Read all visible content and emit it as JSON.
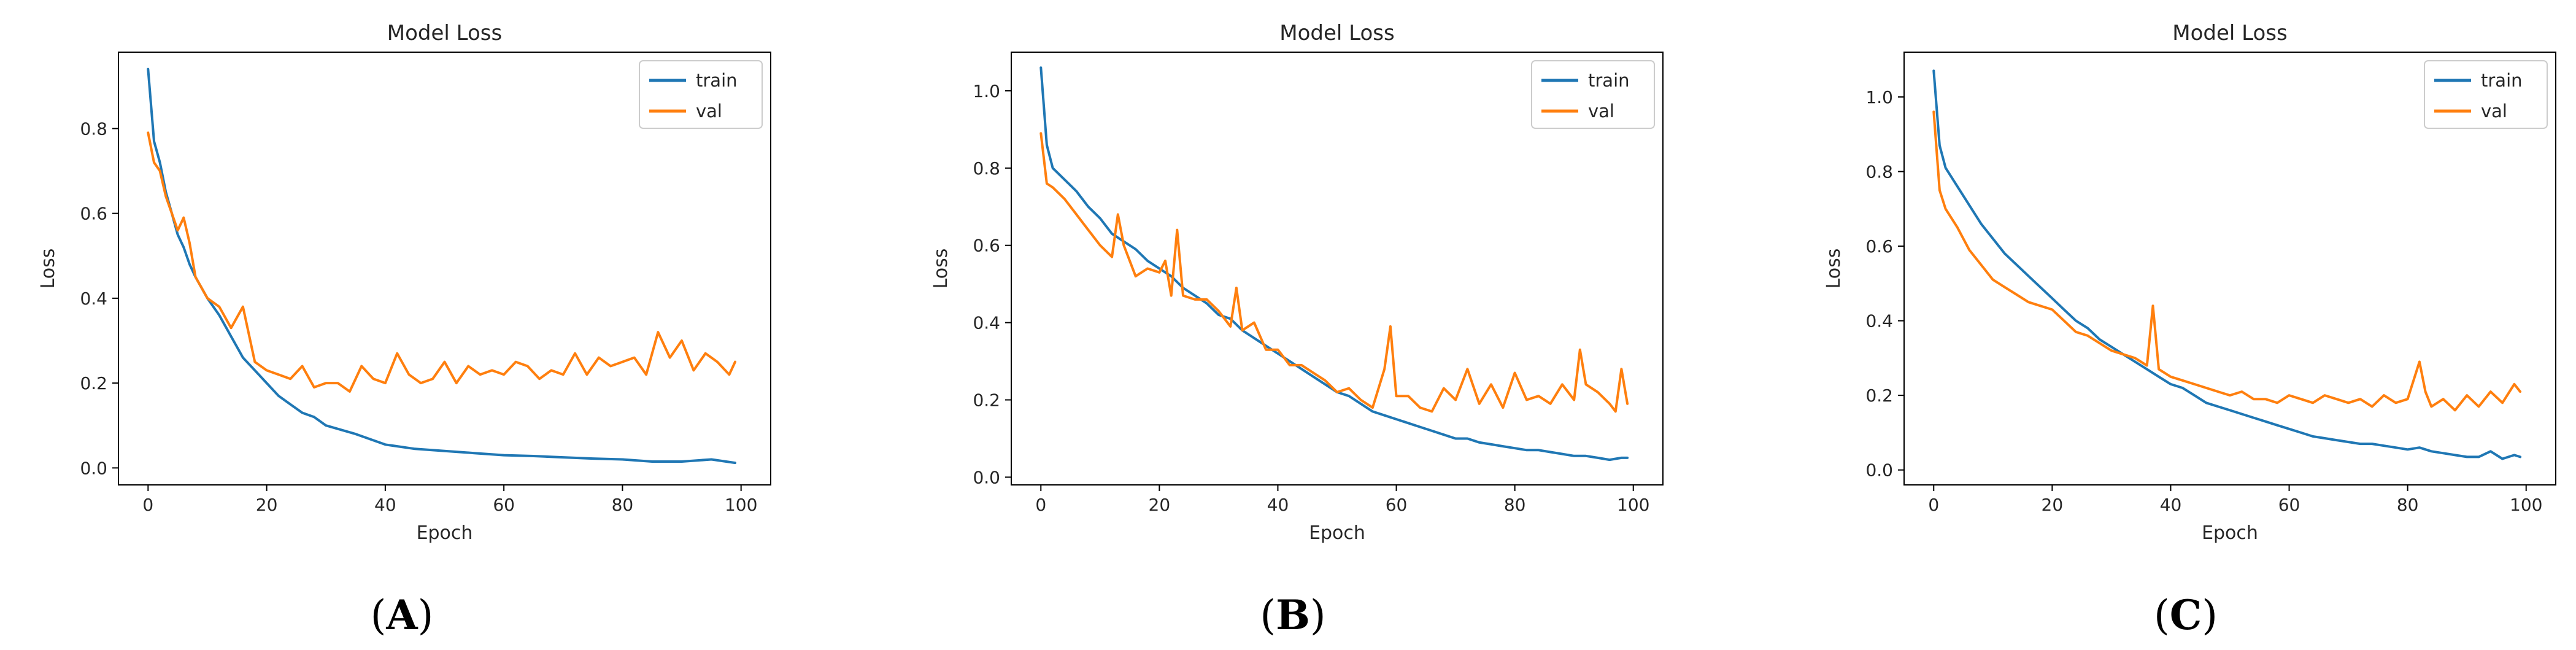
{
  "colors": {
    "train": "#1f77b4",
    "val": "#ff7f0e"
  },
  "chart_data": [
    {
      "type": "line",
      "panel_label": "A",
      "title": "Model Loss",
      "xlabel": "Epoch",
      "ylabel": "Loss",
      "xlim": [
        -5,
        105
      ],
      "ylim": [
        -0.04,
        0.98
      ],
      "xticks": [
        0,
        20,
        40,
        60,
        80,
        100
      ],
      "yticks": [
        0.0,
        0.2,
        0.4,
        0.6,
        0.8
      ],
      "ytick_labels": [
        "0.0",
        "0.2",
        "0.4",
        "0.6",
        "0.8"
      ],
      "legend": {
        "position": "upper right",
        "entries": [
          "train",
          "val"
        ]
      },
      "series": [
        {
          "name": "train",
          "x": [
            0,
            1,
            2,
            3,
            4,
            5,
            6,
            7,
            8,
            10,
            12,
            14,
            16,
            18,
            20,
            22,
            24,
            26,
            28,
            30,
            35,
            40,
            45,
            50,
            55,
            60,
            65,
            70,
            75,
            80,
            85,
            90,
            95,
            99
          ],
          "values": [
            0.94,
            0.77,
            0.72,
            0.65,
            0.6,
            0.55,
            0.52,
            0.48,
            0.45,
            0.4,
            0.36,
            0.31,
            0.26,
            0.23,
            0.2,
            0.17,
            0.15,
            0.13,
            0.12,
            0.1,
            0.08,
            0.055,
            0.045,
            0.04,
            0.035,
            0.03,
            0.028,
            0.025,
            0.022,
            0.02,
            0.015,
            0.015,
            0.02,
            0.012
          ]
        },
        {
          "name": "val",
          "x": [
            0,
            1,
            2,
            3,
            4,
            5,
            6,
            7,
            8,
            10,
            12,
            14,
            16,
            18,
            20,
            22,
            24,
            26,
            28,
            30,
            32,
            34,
            36,
            38,
            40,
            42,
            44,
            46,
            48,
            50,
            52,
            54,
            56,
            58,
            60,
            62,
            64,
            66,
            68,
            70,
            72,
            74,
            76,
            78,
            80,
            82,
            84,
            86,
            88,
            90,
            92,
            94,
            96,
            98,
            99
          ],
          "values": [
            0.79,
            0.72,
            0.7,
            0.64,
            0.6,
            0.56,
            0.59,
            0.53,
            0.45,
            0.4,
            0.38,
            0.33,
            0.38,
            0.25,
            0.23,
            0.22,
            0.21,
            0.24,
            0.19,
            0.2,
            0.2,
            0.18,
            0.24,
            0.21,
            0.2,
            0.27,
            0.22,
            0.2,
            0.21,
            0.25,
            0.2,
            0.24,
            0.22,
            0.23,
            0.22,
            0.25,
            0.24,
            0.21,
            0.23,
            0.22,
            0.27,
            0.22,
            0.26,
            0.24,
            0.25,
            0.26,
            0.22,
            0.32,
            0.26,
            0.3,
            0.23,
            0.27,
            0.25,
            0.22,
            0.25
          ]
        }
      ]
    },
    {
      "type": "line",
      "panel_label": "B",
      "title": "Model Loss",
      "xlabel": "Epoch",
      "ylabel": "Loss",
      "xlim": [
        -5,
        105
      ],
      "ylim": [
        -0.02,
        1.1
      ],
      "xticks": [
        0,
        20,
        40,
        60,
        80,
        100
      ],
      "yticks": [
        0.0,
        0.2,
        0.4,
        0.6,
        0.8,
        1.0
      ],
      "ytick_labels": [
        "0.0",
        "0.2",
        "0.4",
        "0.6",
        "0.8",
        "1.0"
      ],
      "legend": {
        "position": "upper right",
        "entries": [
          "train",
          "val"
        ]
      },
      "series": [
        {
          "name": "train",
          "x": [
            0,
            1,
            2,
            4,
            6,
            8,
            10,
            12,
            14,
            16,
            18,
            20,
            22,
            24,
            26,
            28,
            30,
            32,
            34,
            36,
            38,
            40,
            42,
            44,
            46,
            48,
            50,
            52,
            54,
            56,
            58,
            60,
            62,
            64,
            66,
            68,
            70,
            72,
            74,
            76,
            78,
            80,
            82,
            84,
            86,
            88,
            90,
            92,
            94,
            96,
            98,
            99
          ],
          "values": [
            1.06,
            0.86,
            0.8,
            0.77,
            0.74,
            0.7,
            0.67,
            0.63,
            0.61,
            0.59,
            0.56,
            0.54,
            0.52,
            0.49,
            0.47,
            0.45,
            0.42,
            0.41,
            0.38,
            0.36,
            0.34,
            0.32,
            0.3,
            0.28,
            0.26,
            0.24,
            0.22,
            0.21,
            0.19,
            0.17,
            0.16,
            0.15,
            0.14,
            0.13,
            0.12,
            0.11,
            0.1,
            0.1,
            0.09,
            0.085,
            0.08,
            0.075,
            0.07,
            0.07,
            0.065,
            0.06,
            0.055,
            0.055,
            0.05,
            0.045,
            0.05,
            0.05
          ]
        },
        {
          "name": "val",
          "x": [
            0,
            1,
            2,
            4,
            6,
            8,
            10,
            12,
            13,
            14,
            16,
            18,
            20,
            21,
            22,
            23,
            24,
            26,
            28,
            30,
            32,
            33,
            34,
            36,
            38,
            40,
            42,
            44,
            46,
            48,
            50,
            52,
            54,
            56,
            58,
            59,
            60,
            62,
            64,
            66,
            68,
            70,
            72,
            74,
            76,
            78,
            80,
            82,
            84,
            86,
            88,
            90,
            91,
            92,
            94,
            96,
            97,
            98,
            99
          ],
          "values": [
            0.89,
            0.76,
            0.75,
            0.72,
            0.68,
            0.64,
            0.6,
            0.57,
            0.68,
            0.6,
            0.52,
            0.54,
            0.53,
            0.56,
            0.47,
            0.64,
            0.47,
            0.46,
            0.46,
            0.43,
            0.39,
            0.49,
            0.38,
            0.4,
            0.33,
            0.33,
            0.29,
            0.29,
            0.27,
            0.25,
            0.22,
            0.23,
            0.2,
            0.18,
            0.28,
            0.39,
            0.21,
            0.21,
            0.18,
            0.17,
            0.23,
            0.2,
            0.28,
            0.19,
            0.24,
            0.18,
            0.27,
            0.2,
            0.21,
            0.19,
            0.24,
            0.2,
            0.33,
            0.24,
            0.22,
            0.19,
            0.17,
            0.28,
            0.19
          ]
        }
      ]
    },
    {
      "type": "line",
      "panel_label": "C",
      "title": "Model Loss",
      "xlabel": "Epoch",
      "ylabel": "Loss",
      "xlim": [
        -5,
        105
      ],
      "ylim": [
        -0.04,
        1.12
      ],
      "xticks": [
        0,
        20,
        40,
        60,
        80,
        100
      ],
      "yticks": [
        0.0,
        0.2,
        0.4,
        0.6,
        0.8,
        1.0
      ],
      "ytick_labels": [
        "0.0",
        "0.2",
        "0.4",
        "0.6",
        "0.8",
        "1.0"
      ],
      "legend": {
        "position": "upper right",
        "entries": [
          "train",
          "val"
        ]
      },
      "series": [
        {
          "name": "train",
          "x": [
            0,
            1,
            2,
            4,
            6,
            8,
            10,
            12,
            14,
            16,
            18,
            20,
            22,
            24,
            26,
            28,
            30,
            32,
            34,
            36,
            38,
            40,
            42,
            44,
            46,
            48,
            50,
            52,
            54,
            56,
            58,
            60,
            62,
            64,
            66,
            68,
            70,
            72,
            74,
            76,
            78,
            80,
            82,
            84,
            86,
            88,
            90,
            92,
            94,
            96,
            98,
            99
          ],
          "values": [
            1.07,
            0.87,
            0.81,
            0.76,
            0.71,
            0.66,
            0.62,
            0.58,
            0.55,
            0.52,
            0.49,
            0.46,
            0.43,
            0.4,
            0.38,
            0.35,
            0.33,
            0.31,
            0.29,
            0.27,
            0.25,
            0.23,
            0.22,
            0.2,
            0.18,
            0.17,
            0.16,
            0.15,
            0.14,
            0.13,
            0.12,
            0.11,
            0.1,
            0.09,
            0.085,
            0.08,
            0.075,
            0.07,
            0.07,
            0.065,
            0.06,
            0.055,
            0.06,
            0.05,
            0.045,
            0.04,
            0.035,
            0.035,
            0.05,
            0.03,
            0.04,
            0.035
          ]
        },
        {
          "name": "val",
          "x": [
            0,
            1,
            2,
            4,
            6,
            8,
            10,
            12,
            14,
            16,
            18,
            20,
            22,
            24,
            26,
            28,
            30,
            32,
            34,
            36,
            37,
            38,
            40,
            42,
            44,
            46,
            48,
            50,
            52,
            54,
            56,
            58,
            60,
            62,
            64,
            66,
            68,
            70,
            72,
            74,
            76,
            78,
            80,
            82,
            83,
            84,
            86,
            88,
            90,
            92,
            94,
            96,
            98,
            99
          ],
          "values": [
            0.96,
            0.75,
            0.7,
            0.65,
            0.59,
            0.55,
            0.51,
            0.49,
            0.47,
            0.45,
            0.44,
            0.43,
            0.4,
            0.37,
            0.36,
            0.34,
            0.32,
            0.31,
            0.3,
            0.28,
            0.44,
            0.27,
            0.25,
            0.24,
            0.23,
            0.22,
            0.21,
            0.2,
            0.21,
            0.19,
            0.19,
            0.18,
            0.2,
            0.19,
            0.18,
            0.2,
            0.19,
            0.18,
            0.19,
            0.17,
            0.2,
            0.18,
            0.19,
            0.29,
            0.21,
            0.17,
            0.19,
            0.16,
            0.2,
            0.17,
            0.21,
            0.18,
            0.23,
            0.21
          ]
        }
      ]
    }
  ]
}
